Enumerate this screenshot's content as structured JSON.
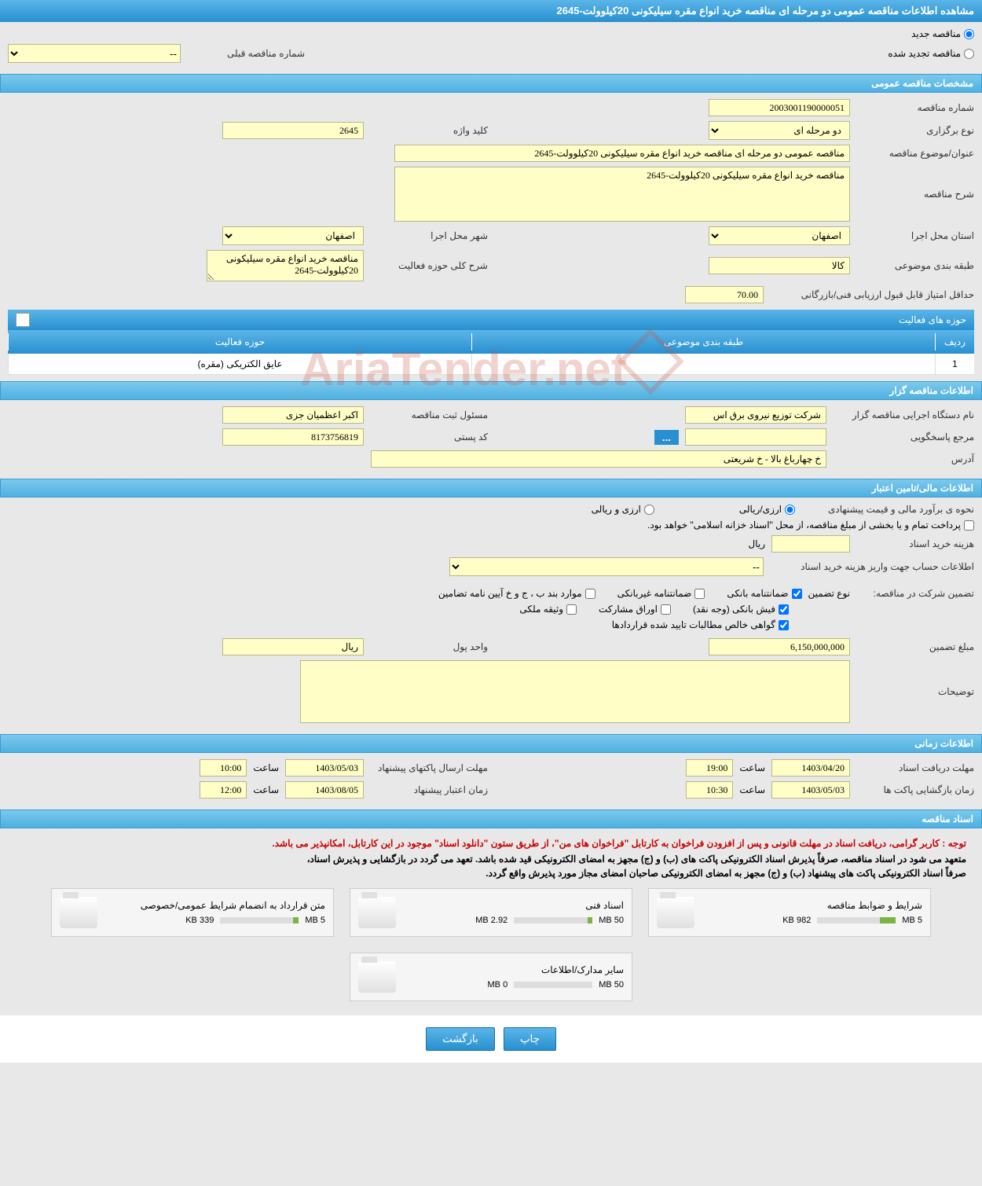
{
  "page_title": "مشاهده اطلاعات مناقصه عمومی دو مرحله ای مناقصه خرید انواع مقره سیلیکونی 20کیلوولت-2645",
  "tender_type": {
    "new_label": "مناقصه جدید",
    "renewed_label": "مناقصه تجدید شده",
    "selected": "new"
  },
  "prev_tender": {
    "label": "شماره مناقصه قبلی",
    "value": "--"
  },
  "section_general": "مشخصات مناقصه عمومی",
  "general": {
    "number_label": "شماره مناقصه",
    "number": "2003001190000051",
    "type_label": "نوع برگزاری",
    "type": "دو مرحله ای",
    "keyword_label": "کلید واژه",
    "keyword": "2645",
    "title_label": "عنوان/موضوع مناقصه",
    "title": "مناقصه عمومی دو مرحله ای مناقصه خرید انواع مقره سیلیکونی 20کیلوولت-2645",
    "desc_label": "شرح مناقصه",
    "desc": "مناقصه خرید انواع مقره سیلیکونی 20کیلوولت-2645",
    "province_label": "استان محل اجرا",
    "province": "اصفهان",
    "city_label": "شهر محل اجرا",
    "city": "اصفهان",
    "category_label": "طبقه بندی موضوعی",
    "category": "کالا",
    "activity_desc_label": "شرح کلی حوزه فعالیت",
    "activity_desc": "مناقصه خرید انواع مقره سیلیکونی 20کیلوولت-2645",
    "min_score_label": "حداقل امتیاز قابل قبول ارزیابی فنی/بازرگانی",
    "min_score": "70.00"
  },
  "activity_panel_title": "حوزه های فعالیت",
  "activity_table": {
    "headers": {
      "row": "ردیف",
      "category": "طبقه بندی موضوعی",
      "field": "حوزه فعالیت"
    },
    "rows": [
      {
        "row": "1",
        "category": "",
        "field": "عایق الکتریکی (مقره)"
      }
    ]
  },
  "section_tenderer": "اطلاعات مناقصه گزار",
  "tenderer": {
    "org_label": "نام دستگاه اجرایی مناقصه گزار",
    "org": "شرکت توزیع نیروی برق اس",
    "registrar_label": "مسئول ثبت مناقصه",
    "registrar": "اکبر اعظمیان جزی",
    "contact_label": "مرجع پاسخگویی",
    "contact": "",
    "postal_label": "کد پستی",
    "postal": "8173756819",
    "address_label": "آدرس",
    "address": "خ چهارباغ بالا - خ شریعتی"
  },
  "section_finance": "اطلاعات مالی/تامین اعتبار",
  "finance": {
    "estimate_label": "نحوه ی برآورد مالی و قیمت پیشنهادی",
    "rial_label": "ارزی/ریالی",
    "currency_label": "ارزی و ریالی",
    "treasury_note": "پرداخت تمام و یا بخشی از مبلغ مناقصه، از محل \"اسناد خزانه اسلامی\" خواهد بود.",
    "doc_cost_label": "هزینه خرید اسناد",
    "doc_cost_unit": "ریال",
    "account_label": "اطلاعات حساب جهت واریز هزینه خرید اسناد",
    "account_value": "--",
    "guarantee_section_label": "تضمین شرکت در مناقصه:",
    "guarantee_type_label": "نوع تضمین",
    "g1": "ضمانتنامه بانکی",
    "g2": "ضمانتنامه غیربانکی",
    "g3": "موارد بند ب ، ج و خ آیین نامه تضامین",
    "g4": "فیش بانکی (وجه نقد)",
    "g5": "اوراق مشارکت",
    "g6": "وثیقه ملکی",
    "g7": "گواهی خالص مطالبات تایید شده قراردادها",
    "amount_label": "مبلغ تضمین",
    "amount": "6,150,000,000",
    "unit_label": "واحد پول",
    "unit": "ریال",
    "notes_label": "توضیحات"
  },
  "section_time": "اطلاعات زمانی",
  "time": {
    "receive_label": "مهلت دریافت اسناد",
    "receive_date": "1403/04/20",
    "receive_time": "19:00",
    "open_label": "زمان بازگشایی پاکت ها",
    "open_date": "1403/05/03",
    "open_time": "10:30",
    "send_label": "مهلت ارسال پاکتهای پیشنهاد",
    "send_date": "1403/05/03",
    "send_time": "10:00",
    "validity_label": "زمان اعتبار پیشنهاد",
    "validity_date": "1403/08/05",
    "validity_time": "12:00",
    "time_word": "ساعت"
  },
  "section_docs": "اسناد مناقصه",
  "docs": {
    "notice_red": "توجه : کاربر گرامی، دریافت اسناد در مهلت قانونی و پس از افزودن فراخوان به کارتابل \"فراخوان های من\"، از طریق ستون \"دانلود اسناد\" موجود در این کارتابل، امکانپذیر می باشد.",
    "notice_1": "متعهد می شود در اسناد مناقصه، صرفاً پذیرش اسناد الکترونیکی پاکت های (ب) و (ج) مجهز به امضای الکترونیکی قید شده باشد. تعهد می گردد در بازگشایی و پذیرش اسناد،",
    "notice_2": "صرفاً اسناد الکترونیکی پاکت های پیشنهاد (ب) و (ج) مجهز به امضای الکترونیکی صاحبان امضای مجاز مورد پذیرش واقع گردد.",
    "files": [
      {
        "title": "شرایط و ضوابط مناقصه",
        "size": "982 KB",
        "max": "5 MB",
        "fill": 20
      },
      {
        "title": "اسناد فنی",
        "size": "2.92 MB",
        "max": "50 MB",
        "fill": 6
      },
      {
        "title": "متن قرارداد به انضمام شرایط عمومی/خصوصی",
        "size": "339 KB",
        "max": "5 MB",
        "fill": 7
      },
      {
        "title": "سایر مدارک/اطلاعات",
        "size": "0 MB",
        "max": "50 MB",
        "fill": 0
      }
    ]
  },
  "buttons": {
    "print": "چاپ",
    "back": "بازگشت"
  },
  "watermark": "AriaTender.net"
}
